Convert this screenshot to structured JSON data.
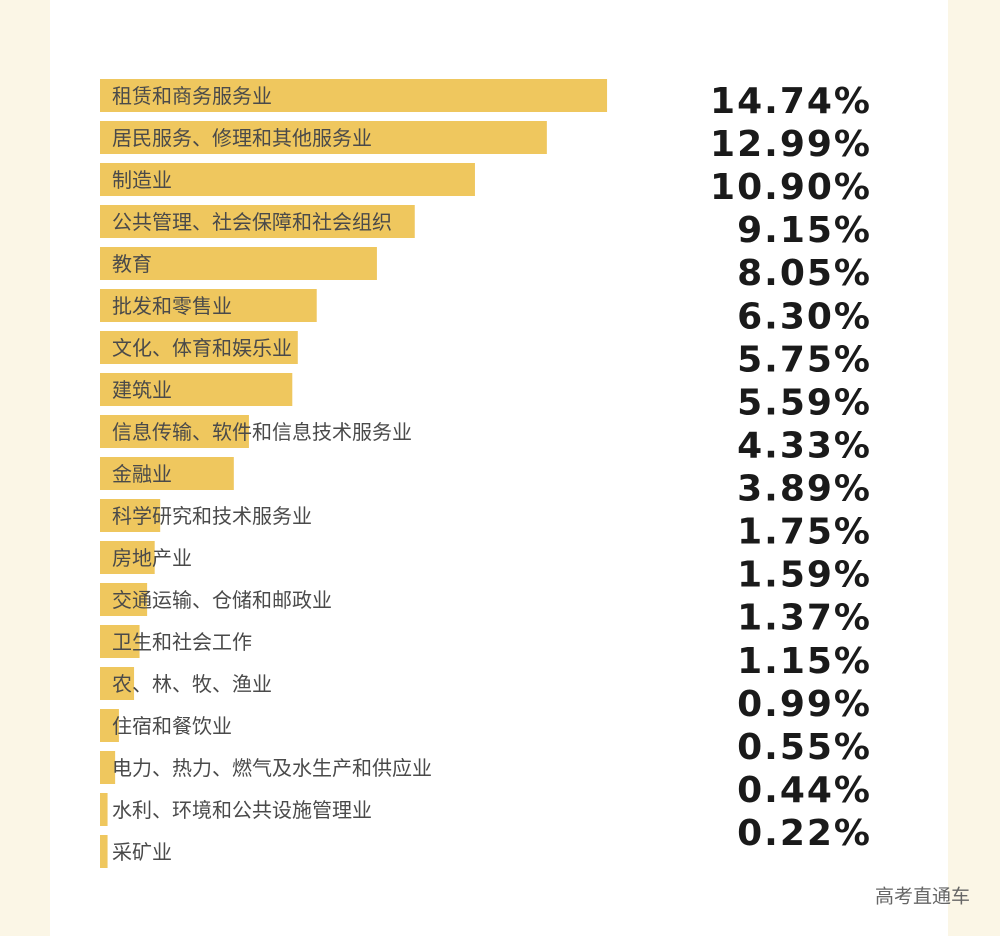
{
  "chart_data": {
    "type": "hbar",
    "categories": [
      "租赁和商务服务业",
      "居民服务、修理和其他服务业",
      "制造业",
      "公共管理、社会保障和社会组织",
      "教育",
      "批发和零售业",
      "文化、体育和娱乐业",
      "建筑业",
      "信息传输、软件和信息技术服务业",
      "金融业",
      "科学研究和技术服务业",
      "房地产业",
      "交通运输、仓储和邮政业",
      "卫生和社会工作",
      "农、林、牧、渔业",
      "住宿和餐饮业",
      "电力、热力、燃气及水生产和供应业",
      "水利、环境和公共设施管理业",
      "采矿业"
    ],
    "values": [
      14.74,
      12.99,
      10.9,
      9.15,
      8.05,
      6.3,
      5.75,
      5.59,
      4.33,
      3.89,
      1.75,
      1.59,
      1.37,
      1.15,
      0.99,
      0.55,
      0.44,
      0.22,
      0.22
    ],
    "value_labels": [
      "14.74%",
      "12.99%",
      "10.90%",
      "9.15%",
      "8.05%",
      "6.30%",
      "5.75%",
      "5.59%",
      "4.33%",
      "3.89%",
      "1.75%",
      "1.59%",
      "1.37%",
      "1.15%",
      "0.99%",
      "0.55%",
      "0.44%",
      "0.22%",
      null
    ],
    "color": "#efc75e",
    "xlim": [
      0,
      15
    ],
    "watermark": "高考直通车"
  }
}
